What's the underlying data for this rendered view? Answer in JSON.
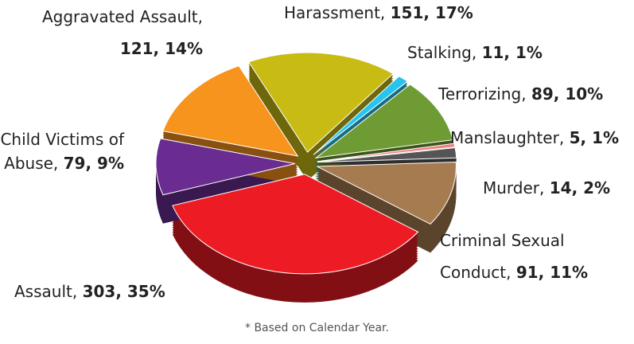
{
  "chart_data": {
    "type": "pie",
    "categories": [
      "Harassment,",
      "Stalking,",
      "Terrorizing,",
      "Manslaughter,",
      "Murder,",
      "Criminal Sexual Conduct,",
      "Assault,",
      "Child Victims of Abuse,",
      "Aggravated Assault,"
    ],
    "values": [
      151,
      11,
      89,
      5,
      14,
      91,
      303,
      79,
      121
    ],
    "value_labels": [
      "151, 17%",
      "11, 1%",
      "89, 10%",
      "5, 1%",
      "14, 2%",
      "91, 11%",
      "303, 35%",
      "79, 9%",
      "121, 14%"
    ],
    "colors": [
      "#c8bb14",
      "#27c4ef",
      "#6e9b33",
      "#f08080",
      "#555555",
      "#a67b50",
      "#ed1c24",
      "#6a2c91",
      "#f7941d"
    ],
    "note": "* Based on Calendar Year."
  }
}
